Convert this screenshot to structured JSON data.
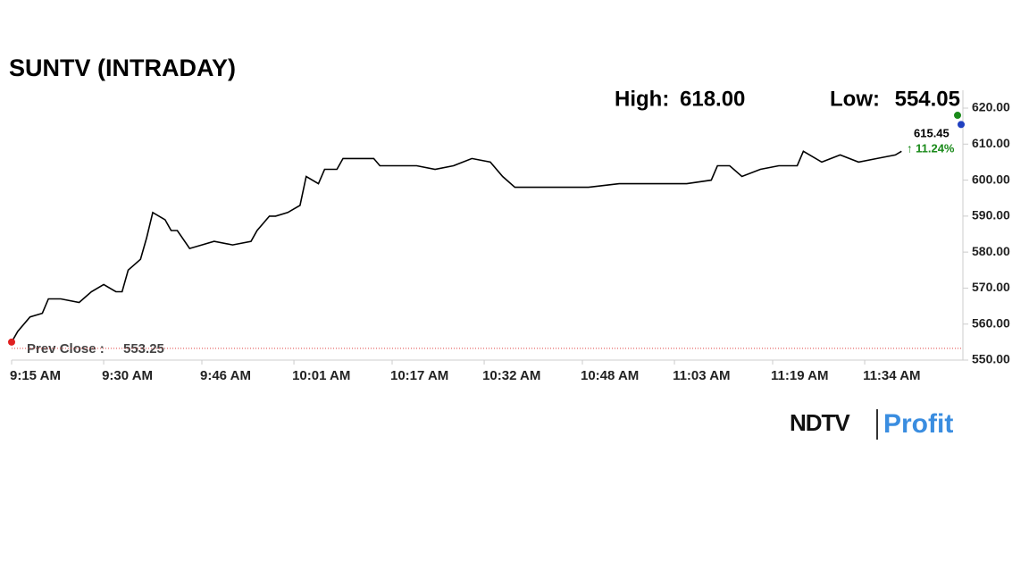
{
  "chart_data": {
    "type": "line",
    "title": "SUNTV (INTRADAY)",
    "high_label": "High:",
    "high": {
      "value": 618,
      "label": "618.00"
    },
    "low_label": "Low:",
    "low": 554.05,
    "last_price": 615.45,
    "change": {
      "value": 11.24,
      "label": "↑ 11.24%"
    },
    "prev_close_label": "Prev Close :",
    "prev_close": 553.25,
    "x": [
      "9:15 AM",
      "9:16 AM",
      "9:18 AM",
      "9:20 AM",
      "9:21 AM",
      "9:23 AM",
      "9:26 AM",
      "9:28 AM",
      "9:30 AM",
      "9:32 AM",
      "9:33 AM",
      "9:34 AM",
      "9:36 AM",
      "9:37 AM",
      "9:38 AM",
      "9:40 AM",
      "9:41 AM",
      "9:42 AM",
      "9:44 AM",
      "9:46 AM",
      "9:48 AM",
      "9:51 AM",
      "9:54 AM",
      "9:55 AM",
      "9:57 AM",
      "9:58 AM",
      "10:00 AM",
      "10:02 AM",
      "10:03 AM",
      "10:05 AM",
      "10:06 AM",
      "10:08 AM",
      "10:09 AM",
      "10:11 AM",
      "10:14 AM",
      "10:15 AM",
      "10:18 AM",
      "10:21 AM",
      "10:24 AM",
      "10:27 AM",
      "10:30 AM",
      "10:33 AM",
      "10:35 AM",
      "10:37 AM",
      "10:41 AM",
      "10:45 AM",
      "10:49 AM",
      "10:54 AM",
      "10:58 AM",
      "11:03 AM",
      "11:05 AM",
      "11:09 AM",
      "11:10 AM",
      "11:12 AM",
      "11:14 AM",
      "11:17 AM",
      "11:20 AM",
      "11:23 AM",
      "11:24 AM",
      "11:27 AM",
      "11:30 AM",
      "11:33 AM",
      "11:36 AM",
      "11:39 AM",
      "11:40 AM"
    ],
    "series": [
      {
        "name": "SUNTV",
        "color": "#000000",
        "values": [
          555,
          558,
          562,
          563,
          567,
          567,
          566,
          569,
          571,
          569,
          569,
          575,
          578,
          584,
          591,
          589,
          586,
          586,
          581,
          582,
          583,
          582,
          583,
          586,
          590,
          590,
          591,
          593,
          601,
          599,
          603,
          603,
          606,
          606,
          606,
          604,
          604,
          604,
          603,
          604,
          606,
          605,
          601,
          598,
          598,
          598,
          598,
          599,
          599,
          599,
          599,
          600,
          604,
          604,
          601,
          603,
          604,
          604,
          608,
          605,
          607,
          605,
          606,
          607,
          608
        ]
      }
    ],
    "xlim": [
      "9:15 AM",
      "11:50 AM"
    ],
    "xticks": [
      "9:15 AM",
      "9:30 AM",
      "9:46 AM",
      "10:01 AM",
      "10:17 AM",
      "10:32 AM",
      "10:48 AM",
      "11:03 AM",
      "11:19 AM",
      "11:34 AM"
    ],
    "ylim": [
      550,
      620
    ],
    "yticks": [
      {
        "value": 550,
        "label": "550.00"
      },
      {
        "value": 560,
        "label": "560.00"
      },
      {
        "value": 570,
        "label": "570.00"
      },
      {
        "value": 580,
        "label": "580.00"
      },
      {
        "value": 590,
        "label": "590.00"
      },
      {
        "value": 600,
        "label": "600.00"
      },
      {
        "value": 610,
        "label": "610.00"
      },
      {
        "value": 620,
        "label": "620.00"
      }
    ],
    "grid": false
  },
  "logo": {
    "brand": "NDTV",
    "product": "Profit"
  }
}
